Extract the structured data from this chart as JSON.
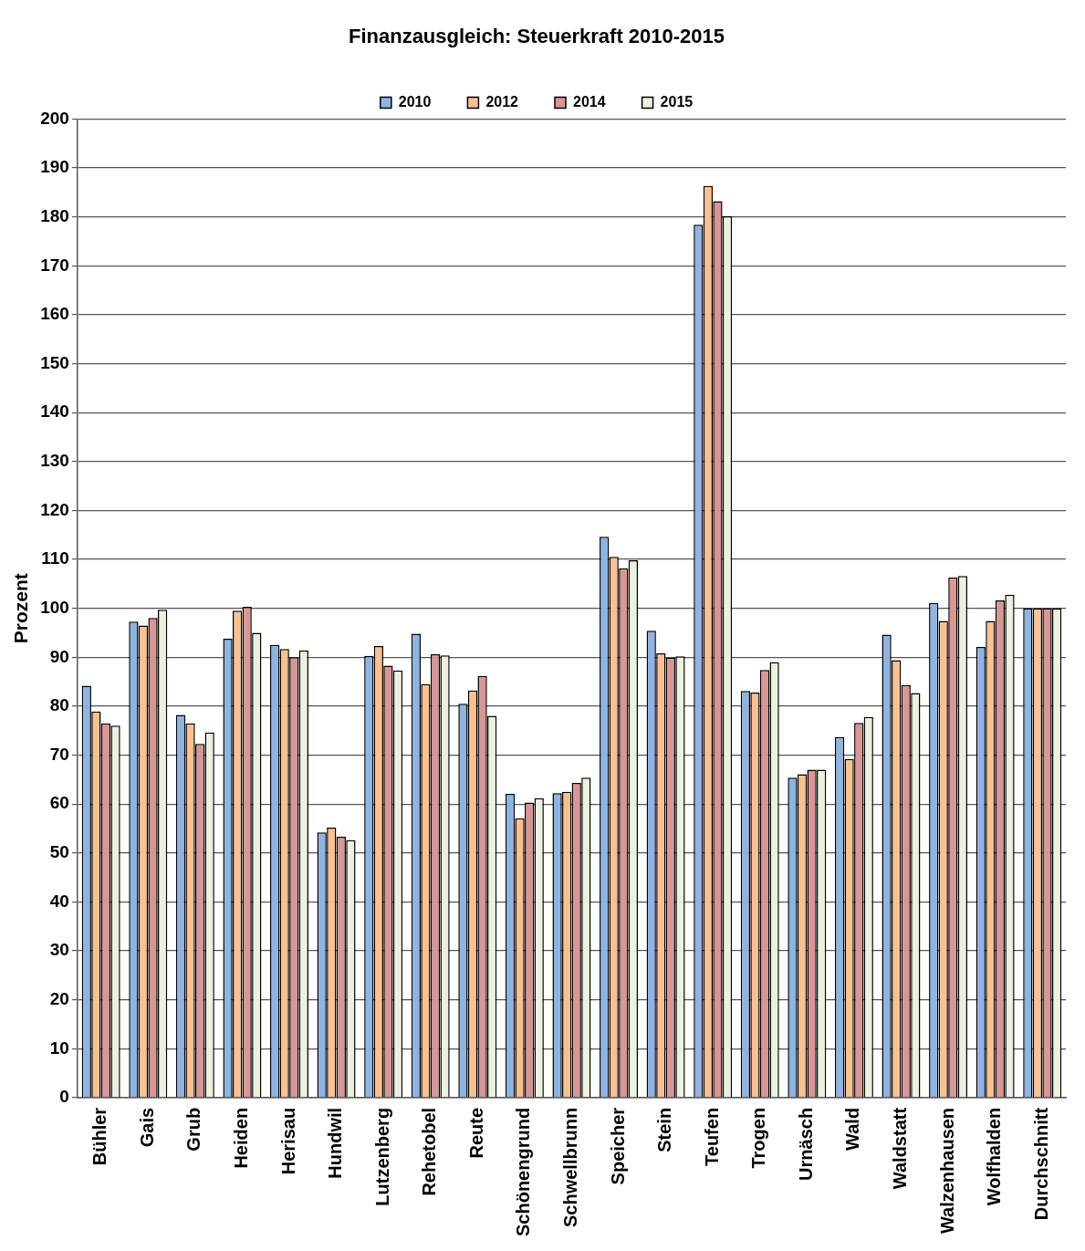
{
  "chart_data": {
    "type": "bar",
    "title": "Finanzausgleich: Steuerkraft 2010-2015",
    "ylabel": "Prozent",
    "categories": [
      "Bühler",
      "Gais",
      "Grub",
      "Heiden",
      "Herisau",
      "Hundwil",
      "Lutzenberg",
      "Rehetobel",
      "Reute",
      "Schönengrund",
      "Schwellbrunn",
      "Speicher",
      "Stein",
      "Teufen",
      "Trogen",
      "Urnäsch",
      "Wald",
      "Waldstatt",
      "Walzenhausen",
      "Wolfhalden",
      "Durchschnitt"
    ],
    "series": [
      {
        "name": "2010",
        "color": "#8eb4e3",
        "values": [
          84.2,
          97.3,
          78.2,
          93.8,
          92.5,
          54.2,
          90.3,
          94.8,
          80.5,
          62.1,
          62.2,
          114.6,
          95.4,
          178.4,
          83.1,
          65.4,
          73.7,
          94.6,
          101.1,
          92.1,
          100
        ]
      },
      {
        "name": "2012",
        "color": "#fac090",
        "values": [
          78.9,
          96.5,
          76.5,
          99.5,
          91.7,
          55.2,
          92.3,
          84.5,
          83.2,
          57.1,
          62.5,
          110.5,
          90.8,
          186.3,
          82.8,
          66.1,
          69.2,
          89.4,
          97.4,
          97.4,
          100
        ]
      },
      {
        "name": "2014",
        "color": "#d99694",
        "values": [
          76.5,
          98,
          72.3,
          100.3,
          90,
          53.3,
          88.3,
          90.6,
          86.2,
          60.3,
          64.3,
          108.2,
          89.9,
          183.2,
          87.4,
          67,
          76.6,
          84.3,
          106.3,
          101.6,
          100
        ]
      },
      {
        "name": "2015",
        "color": "#ebf1de",
        "values": [
          76,
          99.7,
          74.6,
          95,
          91.4,
          52.6,
          87.3,
          90.4,
          78,
          61.2,
          65.4,
          109.8,
          90.2,
          180.1,
          89,
          67,
          77.8,
          82.7,
          106.6,
          102.8,
          100
        ]
      }
    ],
    "ylim": [
      0,
      200
    ],
    "yticks": [
      0,
      10,
      20,
      30,
      40,
      50,
      60,
      70,
      80,
      90,
      100,
      110,
      120,
      130,
      140,
      150,
      160,
      170,
      180,
      190,
      200
    ],
    "grid": "y",
    "legend": "top"
  }
}
